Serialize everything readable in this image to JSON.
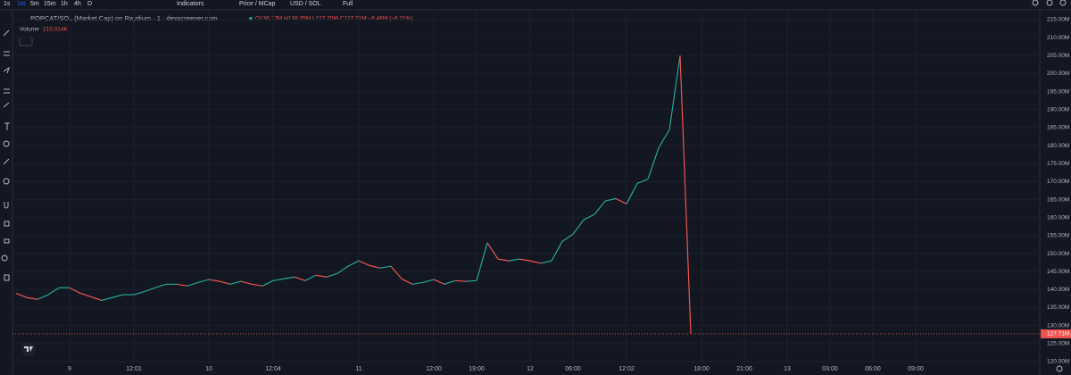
{
  "toolbar": {
    "intervals": [
      "1s",
      "1m",
      "5m",
      "15m",
      "1h",
      "4h",
      "D"
    ],
    "active_interval": "1m",
    "indicators": "Indicators",
    "price_mode": "Price / MCap",
    "currency": "USD / SOL",
    "full": "Full"
  },
  "legend": {
    "symbol": "POPCAT/SOL (Market Cap) on Raydium · 1 · dexscreener.com",
    "ohlc": "O136.17M H138.35M L127.70M C127.71M −8.46M (−6.21%)",
    "volume_label": "Volume",
    "volume_value": "215.014K"
  },
  "chart_data": {
    "type": "line",
    "categories": [
      null,
      null,
      null,
      null,
      null,
      "9",
      null,
      null,
      null,
      null,
      null,
      "12:01",
      null,
      null,
      null,
      null,
      null,
      null,
      "10",
      null,
      null,
      null,
      null,
      null,
      "12:04",
      null,
      null,
      null,
      null,
      null,
      null,
      null,
      "11",
      null,
      null,
      null,
      null,
      null,
      null,
      "12:00",
      null,
      null,
      null,
      "19:00",
      null,
      null,
      null,
      null,
      "12",
      null,
      null,
      null,
      "06:00",
      null,
      null,
      null,
      null,
      "12:02",
      null,
      null,
      null,
      null,
      null,
      null,
      "18:00",
      null,
      null,
      null,
      "21:00",
      null,
      null,
      null,
      "13",
      null,
      null,
      null,
      "03:00",
      null,
      null,
      null,
      "06:00",
      null,
      null,
      null,
      "09:00"
    ],
    "values": [
      139,
      137.8,
      137.3,
      138.6,
      140.5,
      140.5,
      139,
      138,
      137,
      137.8,
      138.6,
      138.6,
      139.5,
      140.5,
      141.5,
      141.5,
      141,
      142,
      142.8,
      142.3,
      141.5,
      142.3,
      141.5,
      141,
      142.5,
      143,
      143.5,
      142.5,
      144,
      143.5,
      144.5,
      146.5,
      148,
      146.7,
      146,
      146.5,
      143,
      141.5,
      142,
      142.8,
      141.5,
      142.5,
      142.3,
      142.5,
      153,
      148.5,
      148,
      148.5,
      148,
      147.3,
      148,
      153.4,
      155.4,
      159.4,
      160.9,
      164.6,
      165.3,
      163.8,
      169.5,
      170.7,
      179.4,
      184.4,
      205,
      127.7,
      null,
      null,
      null,
      null,
      null,
      null,
      null,
      null,
      null,
      null,
      null,
      null,
      null,
      null,
      null,
      null,
      null,
      null,
      null,
      null,
      null
    ],
    "up_color": "#26a69a",
    "down_color": "#ef5350",
    "ylim": [
      120,
      215.5
    ],
    "yticks": [
      {
        "value": 120,
        "label": "120.00M"
      },
      {
        "value": 125,
        "label": "125.00M"
      },
      {
        "value": 130,
        "label": "130.00M"
      },
      {
        "value": 135,
        "label": "135.00M"
      },
      {
        "value": 140,
        "label": "140.00M"
      },
      {
        "value": 145,
        "label": "145.00M"
      },
      {
        "value": 150,
        "label": "150.00M"
      },
      {
        "value": 155,
        "label": "155.00M"
      },
      {
        "value": 160,
        "label": "160.00M"
      },
      {
        "value": 165,
        "label": "165.00M"
      },
      {
        "value": 170,
        "label": "170.00M"
      },
      {
        "value": 175,
        "label": "175.00M"
      },
      {
        "value": 180,
        "label": "180.00M"
      },
      {
        "value": 185,
        "label": "185.00M"
      },
      {
        "value": 190,
        "label": "190.00M"
      },
      {
        "value": 195,
        "label": "195.00M"
      },
      {
        "value": 200,
        "label": "200.00M"
      },
      {
        "value": 205,
        "label": "205.00M"
      },
      {
        "value": 210,
        "label": "210.00M"
      },
      {
        "value": 215,
        "label": "215.00M"
      }
    ],
    "last_price": {
      "value": 127.71,
      "label": "127.71M"
    },
    "grid": true
  }
}
